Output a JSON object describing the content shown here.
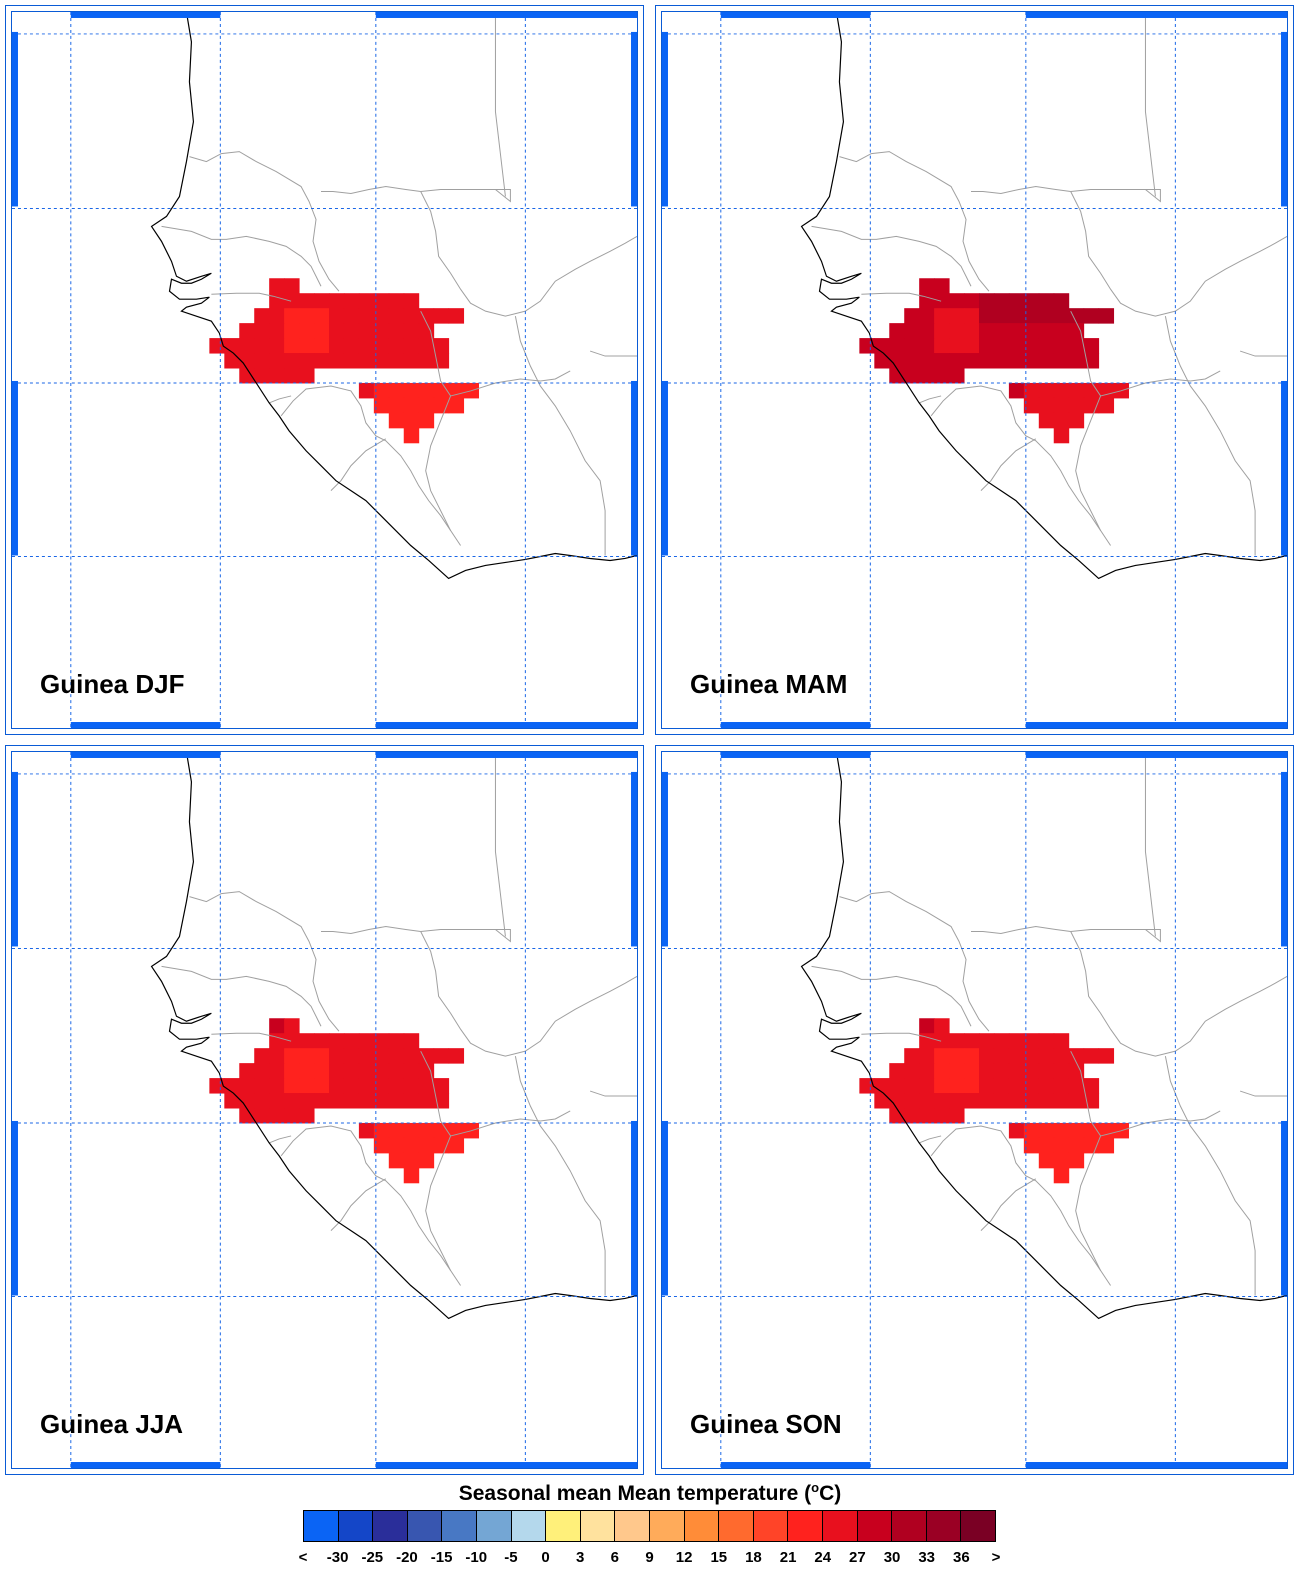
{
  "panels": [
    {
      "label": "Guinea DJF",
      "map_id": "djf"
    },
    {
      "label": "Guinea MAM",
      "map_id": "mam"
    },
    {
      "label": "Guinea JJA",
      "map_id": "jja"
    },
    {
      "label": "Guinea SON",
      "map_id": "son"
    }
  ],
  "colorbar": {
    "title_prefix": "Seasonal mean Mean temperature (",
    "title_sup": "o",
    "title_suffix": "C)",
    "colors": [
      "#0a64f5",
      "#1446c8",
      "#2a2e9a",
      "#3856b0",
      "#4878c4",
      "#74a6d4",
      "#b4d8ec",
      "#fff07a",
      "#ffe29e",
      "#ffc88c",
      "#ffab5a",
      "#ff8c38",
      "#ff6a2e",
      "#ff4428",
      "#ff221e",
      "#e8101e",
      "#c8001e",
      "#b00020",
      "#9a0024",
      "#7a0024"
    ],
    "tick_labels": [
      "<",
      "-30",
      "-25",
      "-20",
      "-15",
      "-10",
      "-5",
      "0",
      "3",
      "6",
      "9",
      "12",
      "15",
      "18",
      "21",
      "24",
      "27",
      "30",
      "33",
      "36",
      ">"
    ]
  },
  "style": {
    "grid_color": "#1a66e6",
    "coast_color": "#000000",
    "border_color": "#a0a0a0",
    "frame_color": "#0a5bd6"
  }
}
